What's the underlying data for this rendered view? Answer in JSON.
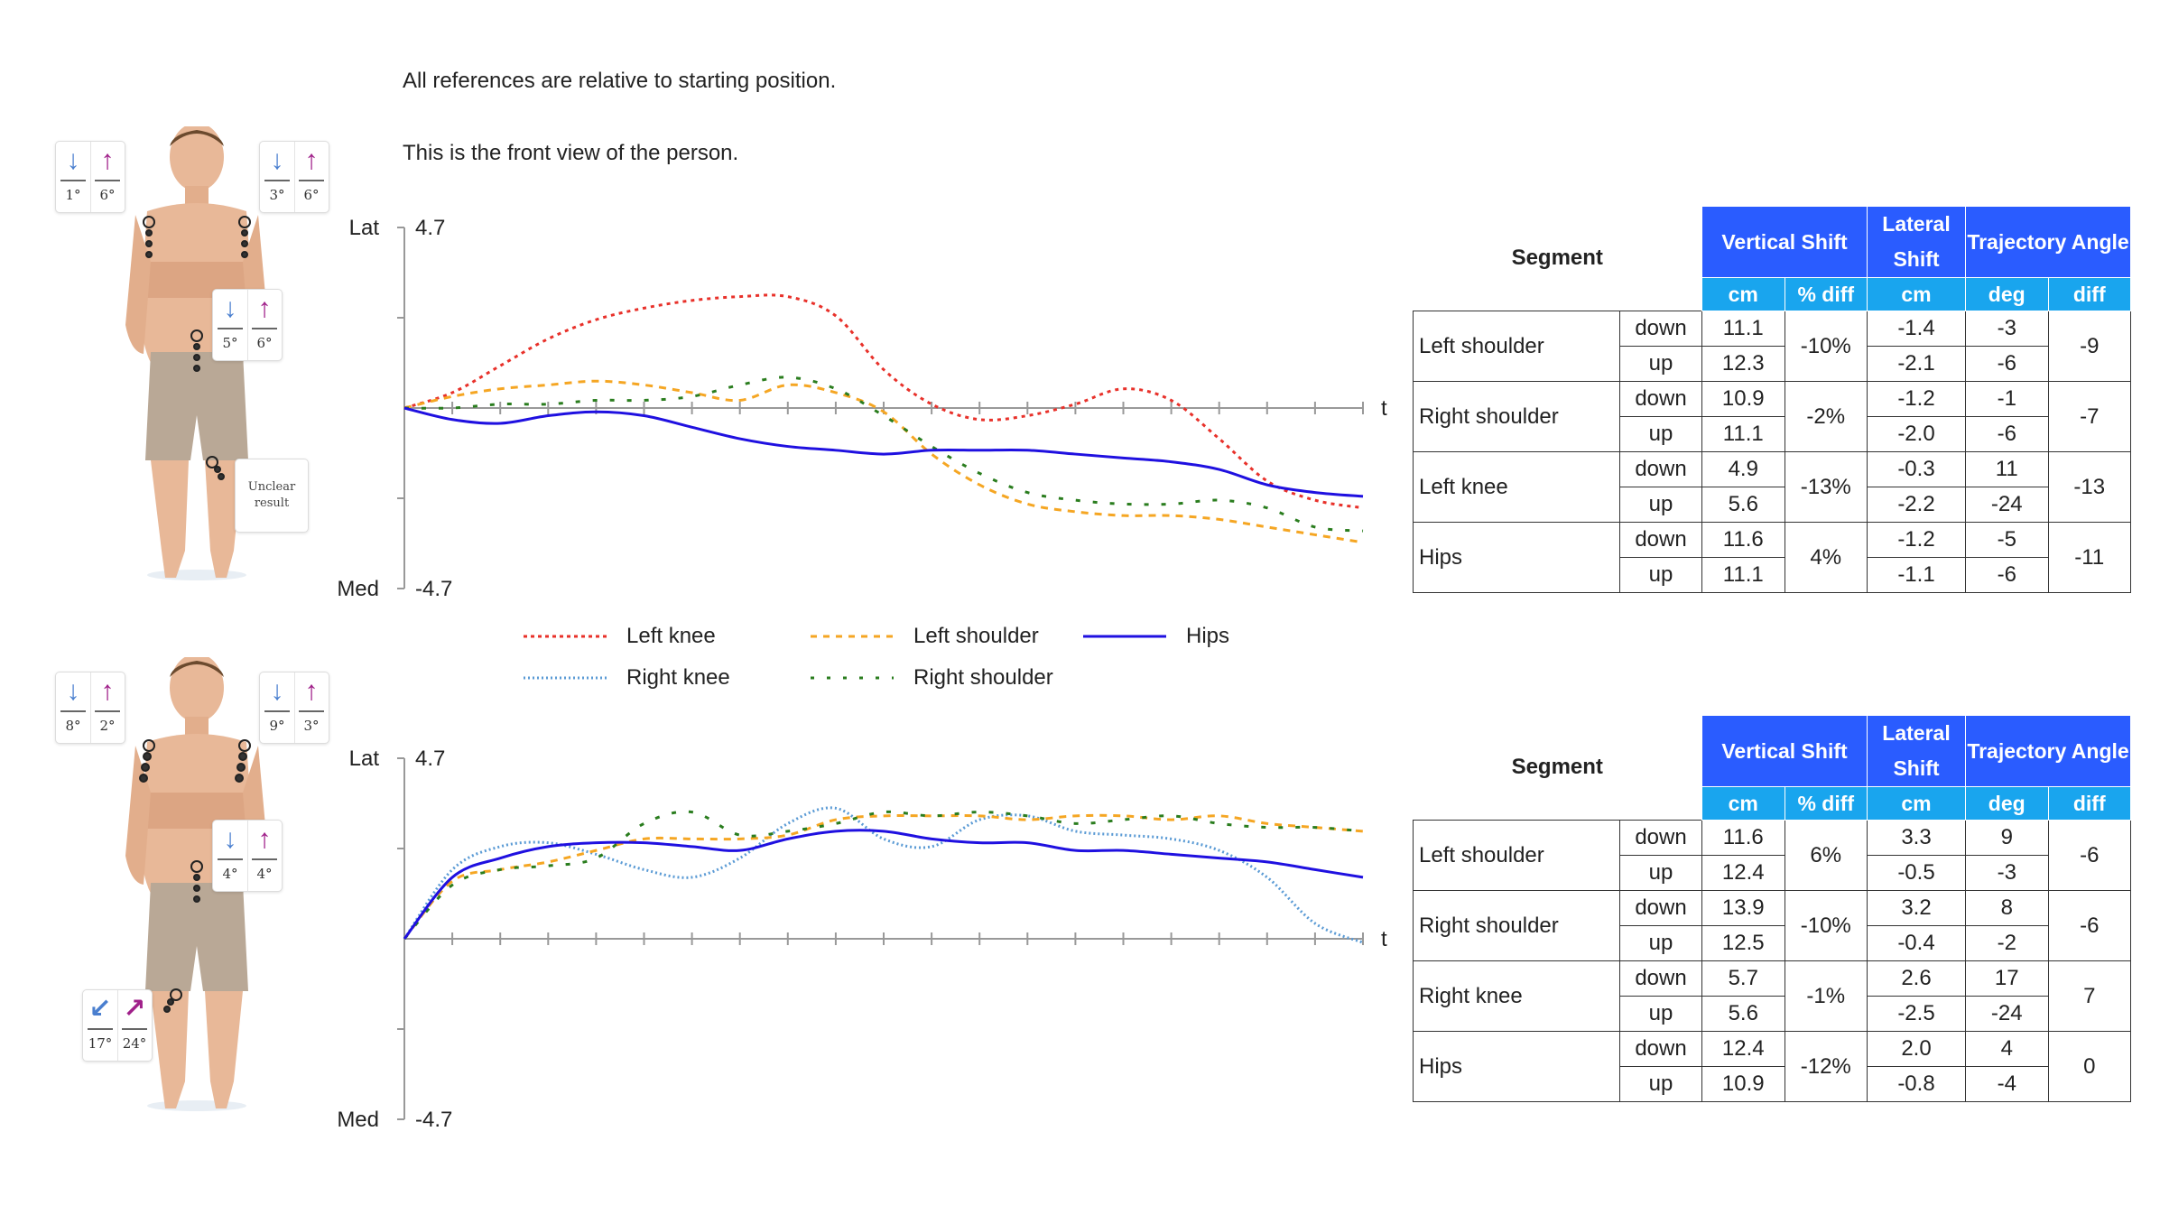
{
  "notes": {
    "line1": "All references are relative to starting position.",
    "line2": "This is the front view of the person."
  },
  "colors": {
    "left_knee": "#e8312a",
    "right_knee": "#5b9bd5",
    "left_shoulder": "#f5a623",
    "right_shoulder": "#2a7d1e",
    "hips": "#1f10e0",
    "header_blue": "#2a5cff",
    "subheader_cyan": "#19a5ee"
  },
  "legend": [
    {
      "label": "Left knee",
      "key": "left_knee",
      "dash": "dotted-red"
    },
    {
      "label": "Left shoulder",
      "key": "left_shoulder",
      "dash": "dashed-orange"
    },
    {
      "label": "Hips",
      "key": "hips",
      "dash": "solid"
    },
    {
      "label": "Right knee",
      "key": "right_knee",
      "dash": "dotted-blue"
    },
    {
      "label": "Right shoulder",
      "key": "right_shoulder",
      "dash": "dashed-green"
    }
  ],
  "panels": [
    {
      "badges": {
        "left_shoulder": {
          "down": "1°",
          "up": "6°"
        },
        "right_shoulder": {
          "down": "3°",
          "up": "6°"
        },
        "hips": {
          "down": "5°",
          "up": "6°"
        },
        "knee": {
          "unclear_text": "Unclear result"
        }
      },
      "table": {
        "segment_header": "Segment",
        "group_headers": [
          "Vertical Shift",
          "Lateral Shift",
          "Trajectory Angle"
        ],
        "sub_headers": [
          "cm",
          "% diff",
          "cm",
          "deg",
          "diff"
        ],
        "rows": [
          {
            "name": "Left shoulder",
            "pct": "-10%",
            "diff": "-9",
            "down": {
              "dir": "down",
              "cm": "11.1",
              "lat": "-1.4",
              "deg": "-3"
            },
            "up": {
              "dir": "up",
              "cm": "12.3",
              "lat": "-2.1",
              "deg": "-6"
            }
          },
          {
            "name": "Right shoulder",
            "pct": "-2%",
            "diff": "-7",
            "down": {
              "dir": "down",
              "cm": "10.9",
              "lat": "-1.2",
              "deg": "-1"
            },
            "up": {
              "dir": "up",
              "cm": "11.1",
              "lat": "-2.0",
              "deg": "-6"
            }
          },
          {
            "name": "Left knee",
            "pct": "-13%",
            "diff": "-13",
            "down": {
              "dir": "down",
              "cm": "4.9",
              "lat": "-0.3",
              "deg": "11"
            },
            "up": {
              "dir": "up",
              "cm": "5.6",
              "lat": "-2.2",
              "deg": "-24"
            }
          },
          {
            "name": "Hips",
            "pct": "4%",
            "diff": "-11",
            "down": {
              "dir": "down",
              "cm": "11.6",
              "lat": "-1.2",
              "deg": "-5"
            },
            "up": {
              "dir": "up",
              "cm": "11.1",
              "lat": "-1.1",
              "deg": "-6"
            }
          }
        ]
      }
    },
    {
      "badges": {
        "left_shoulder": {
          "down": "8°",
          "up": "2°"
        },
        "right_shoulder": {
          "down": "9°",
          "up": "3°"
        },
        "hips": {
          "down": "4°",
          "up": "4°"
        },
        "knee": {
          "down": "17°",
          "up": "24°"
        }
      },
      "table": {
        "segment_header": "Segment",
        "group_headers": [
          "Vertical Shift",
          "Lateral Shift",
          "Trajectory Angle"
        ],
        "sub_headers": [
          "cm",
          "% diff",
          "cm",
          "deg",
          "diff"
        ],
        "rows": [
          {
            "name": "Left shoulder",
            "pct": "6%",
            "diff": "-6",
            "down": {
              "dir": "down",
              "cm": "11.6",
              "lat": "3.3",
              "deg": "9"
            },
            "up": {
              "dir": "up",
              "cm": "12.4",
              "lat": "-0.5",
              "deg": "-3"
            }
          },
          {
            "name": "Right shoulder",
            "pct": "-10%",
            "diff": "-6",
            "down": {
              "dir": "down",
              "cm": "13.9",
              "lat": "3.2",
              "deg": "8"
            },
            "up": {
              "dir": "up",
              "cm": "12.5",
              "lat": "-0.4",
              "deg": "-2"
            }
          },
          {
            "name": "Right knee",
            "pct": "-1%",
            "diff": "7",
            "down": {
              "dir": "down",
              "cm": "5.7",
              "lat": "2.6",
              "deg": "17"
            },
            "up": {
              "dir": "up",
              "cm": "5.6",
              "lat": "-2.5",
              "deg": "-24"
            }
          },
          {
            "name": "Hips",
            "pct": "-12%",
            "diff": "0",
            "down": {
              "dir": "down",
              "cm": "12.4",
              "lat": "2.0",
              "deg": "4"
            },
            "up": {
              "dir": "up",
              "cm": "10.9",
              "lat": "-0.8",
              "deg": "-4"
            }
          }
        ]
      }
    }
  ],
  "chart_data": [
    {
      "type": "line",
      "title": "",
      "ylabel_top": "Lat",
      "ylabel_bottom": "Med",
      "ymax_label": "4.7",
      "ymin_label": "-4.7",
      "xlabel": "t",
      "ylim": [
        -4.7,
        4.7
      ],
      "x": [
        0,
        5,
        10,
        15,
        20,
        25,
        30,
        35,
        40,
        45,
        50,
        55,
        60,
        65,
        70,
        75,
        80,
        85,
        90,
        95,
        100
      ],
      "series": [
        {
          "name": "Left knee",
          "key": "left_knee",
          "style": "dotted",
          "values": [
            0,
            0.4,
            1.1,
            1.8,
            2.3,
            2.6,
            2.8,
            2.9,
            2.9,
            2.4,
            1.0,
            0.1,
            -0.3,
            -0.2,
            0.1,
            0.5,
            0.2,
            -0.8,
            -1.9,
            -2.4,
            -2.6
          ]
        },
        {
          "name": "Left shoulder",
          "key": "left_shoulder",
          "style": "dashed",
          "values": [
            0,
            0.3,
            0.5,
            0.6,
            0.7,
            0.6,
            0.4,
            0.2,
            0.6,
            0.4,
            -0.1,
            -1.2,
            -2.0,
            -2.5,
            -2.7,
            -2.8,
            -2.8,
            -2.9,
            -3.1,
            -3.3,
            -3.5
          ]
        },
        {
          "name": "Right shoulder",
          "key": "right_shoulder",
          "style": "dashed",
          "values": [
            0,
            0,
            0.1,
            0.1,
            0.2,
            0.2,
            0.3,
            0.6,
            0.8,
            0.5,
            -0.2,
            -1.0,
            -1.7,
            -2.2,
            -2.4,
            -2.5,
            -2.5,
            -2.4,
            -2.6,
            -3.1,
            -3.2
          ]
        },
        {
          "name": "Hips",
          "key": "hips",
          "style": "solid",
          "values": [
            0,
            -0.3,
            -0.4,
            -0.2,
            -0.1,
            -0.2,
            -0.5,
            -0.8,
            -1.0,
            -1.1,
            -1.2,
            -1.1,
            -1.1,
            -1.1,
            -1.2,
            -1.3,
            -1.4,
            -1.6,
            -2.0,
            -2.2,
            -2.3
          ]
        }
      ]
    },
    {
      "type": "line",
      "title": "",
      "ylabel_top": "Lat",
      "ylabel_bottom": "Med",
      "ymax_label": "4.7",
      "ymin_label": "-4.7",
      "xlabel": "t",
      "ylim": [
        -4.7,
        4.7
      ],
      "x": [
        0,
        5,
        10,
        15,
        20,
        25,
        30,
        35,
        40,
        45,
        50,
        55,
        60,
        65,
        70,
        75,
        80,
        85,
        90,
        95,
        100
      ],
      "series": [
        {
          "name": "Right knee",
          "key": "right_knee",
          "style": "dotted",
          "values": [
            0,
            1.8,
            2.4,
            2.5,
            2.2,
            1.8,
            1.6,
            2.1,
            3.0,
            3.4,
            2.6,
            2.4,
            3.1,
            3.2,
            2.8,
            2.7,
            2.6,
            2.3,
            1.6,
            0.4,
            -0.1
          ]
        },
        {
          "name": "Left shoulder",
          "key": "left_shoulder",
          "style": "dashed",
          "values": [
            0,
            1.5,
            1.8,
            2.0,
            2.3,
            2.6,
            2.6,
            2.6,
            2.7,
            3.1,
            3.2,
            3.2,
            3.2,
            3.1,
            3.2,
            3.2,
            3.1,
            3.2,
            3.0,
            2.9,
            2.8
          ]
        },
        {
          "name": "Right shoulder",
          "key": "right_shoulder",
          "style": "dashed",
          "values": [
            0,
            1.4,
            1.8,
            1.9,
            2.1,
            3.0,
            3.3,
            2.7,
            2.8,
            3.0,
            3.3,
            3.2,
            3.3,
            3.2,
            3.0,
            3.1,
            3.2,
            3.0,
            2.9,
            2.9,
            2.8
          ]
        },
        {
          "name": "Hips",
          "key": "hips",
          "style": "solid",
          "values": [
            0,
            1.6,
            2.1,
            2.4,
            2.5,
            2.5,
            2.4,
            2.3,
            2.6,
            2.8,
            2.8,
            2.6,
            2.5,
            2.5,
            2.3,
            2.3,
            2.2,
            2.1,
            2.0,
            1.8,
            1.6
          ]
        }
      ]
    }
  ]
}
